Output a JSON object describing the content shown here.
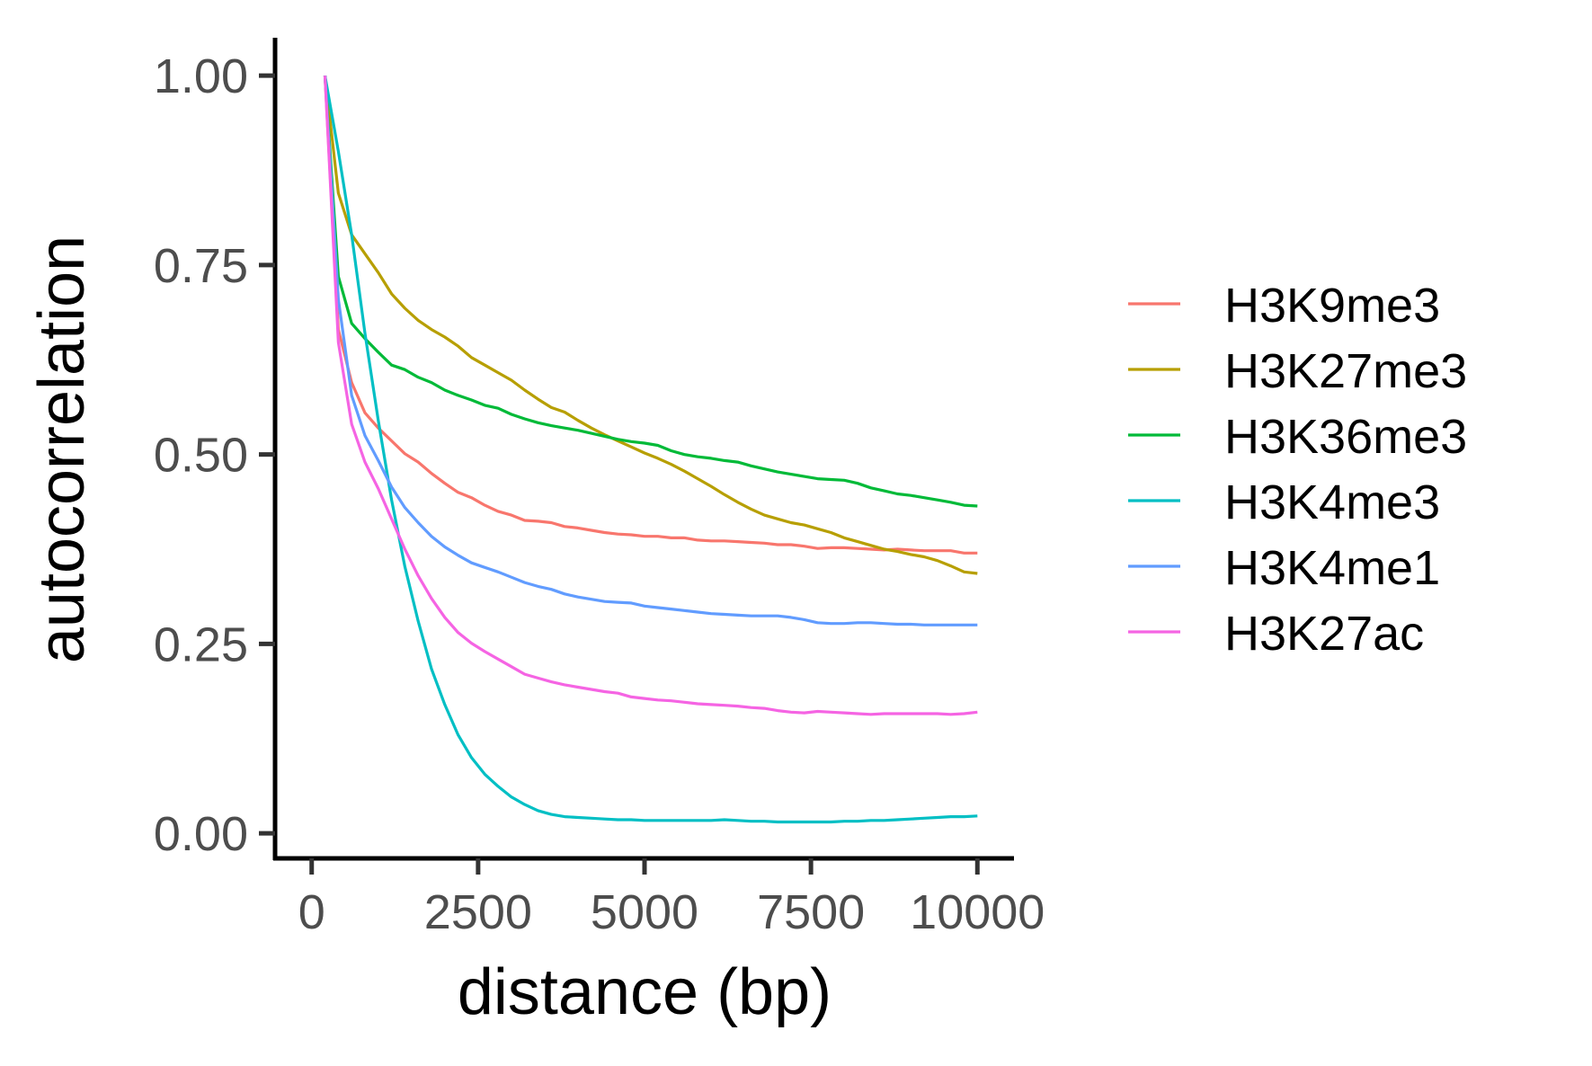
{
  "chart_data": {
    "type": "line",
    "title": "",
    "xlabel": "distance (bp)",
    "ylabel": "autocorrelation",
    "xlim": [
      -550,
      10550
    ],
    "ylim": [
      -0.033,
      1.05
    ],
    "xticks": [
      0,
      2500,
      5000,
      7500,
      10000
    ],
    "xtick_labels": [
      "0",
      "2500",
      "5000",
      "7500",
      "10000"
    ],
    "yticks": [
      0.0,
      0.25,
      0.5,
      0.75,
      1.0
    ],
    "ytick_labels": [
      "0.00",
      "0.25",
      "0.50",
      "0.75",
      "1.00"
    ],
    "grid": false,
    "legend_position": "right",
    "series": [
      {
        "name": "H3K9me3",
        "color": "#F8766D",
        "x": [
          200,
          400,
          600,
          800,
          1000,
          1200,
          1400,
          1600,
          1800,
          2000,
          2200,
          2400,
          2600,
          2800,
          3000,
          3200,
          3400,
          3600,
          3800,
          4000,
          4200,
          4400,
          4600,
          4800,
          5000,
          5200,
          5400,
          5600,
          5800,
          6000,
          6200,
          6400,
          6600,
          6800,
          7000,
          7200,
          7400,
          7600,
          7800,
          8000,
          8200,
          8400,
          8600,
          8800,
          9000,
          9200,
          9400,
          9600,
          9800,
          10000
        ],
        "values": [
          1.0,
          0.665,
          0.595,
          0.555,
          0.535,
          0.518,
          0.501,
          0.49,
          0.475,
          0.462,
          0.45,
          0.443,
          0.433,
          0.425,
          0.42,
          0.413,
          0.412,
          0.41,
          0.405,
          0.403,
          0.4,
          0.397,
          0.395,
          0.394,
          0.392,
          0.392,
          0.39,
          0.39,
          0.387,
          0.386,
          0.386,
          0.385,
          0.384,
          0.383,
          0.381,
          0.381,
          0.379,
          0.376,
          0.377,
          0.377,
          0.376,
          0.375,
          0.374,
          0.375,
          0.374,
          0.373,
          0.373,
          0.373,
          0.37,
          0.37
        ]
      },
      {
        "name": "H3K27me3",
        "color": "#B79F00",
        "x": [
          200,
          400,
          600,
          800,
          1000,
          1200,
          1400,
          1600,
          1800,
          2000,
          2200,
          2400,
          2600,
          2800,
          3000,
          3200,
          3400,
          3600,
          3800,
          4000,
          4200,
          4400,
          4600,
          4800,
          5000,
          5200,
          5400,
          5600,
          5800,
          6000,
          6200,
          6400,
          6600,
          6800,
          7000,
          7200,
          7400,
          7600,
          7800,
          8000,
          8200,
          8400,
          8600,
          8800,
          9000,
          9200,
          9400,
          9600,
          9800,
          10000
        ],
        "values": [
          1.0,
          0.845,
          0.79,
          0.765,
          0.74,
          0.712,
          0.693,
          0.677,
          0.665,
          0.655,
          0.643,
          0.628,
          0.618,
          0.608,
          0.598,
          0.585,
          0.573,
          0.562,
          0.556,
          0.545,
          0.535,
          0.526,
          0.518,
          0.51,
          0.502,
          0.495,
          0.487,
          0.478,
          0.468,
          0.458,
          0.447,
          0.437,
          0.428,
          0.42,
          0.415,
          0.41,
          0.407,
          0.402,
          0.397,
          0.39,
          0.385,
          0.38,
          0.375,
          0.372,
          0.368,
          0.365,
          0.36,
          0.353,
          0.345,
          0.343
        ]
      },
      {
        "name": "H3K36me3",
        "color": "#00BA38",
        "x": [
          200,
          400,
          600,
          800,
          1000,
          1200,
          1400,
          1600,
          1800,
          2000,
          2200,
          2400,
          2600,
          2800,
          3000,
          3200,
          3400,
          3600,
          3800,
          4000,
          4200,
          4400,
          4600,
          4800,
          5000,
          5200,
          5400,
          5600,
          5800,
          6000,
          6200,
          6400,
          6600,
          6800,
          7000,
          7200,
          7400,
          7600,
          7800,
          8000,
          8200,
          8400,
          8600,
          8800,
          9000,
          9200,
          9400,
          9600,
          9800,
          10000
        ],
        "values": [
          1.0,
          0.735,
          0.673,
          0.653,
          0.635,
          0.618,
          0.612,
          0.602,
          0.595,
          0.585,
          0.578,
          0.572,
          0.565,
          0.561,
          0.553,
          0.547,
          0.542,
          0.538,
          0.535,
          0.532,
          0.528,
          0.524,
          0.52,
          0.517,
          0.515,
          0.512,
          0.505,
          0.5,
          0.497,
          0.495,
          0.492,
          0.49,
          0.485,
          0.481,
          0.477,
          0.474,
          0.471,
          0.468,
          0.467,
          0.466,
          0.462,
          0.456,
          0.452,
          0.448,
          0.446,
          0.443,
          0.44,
          0.437,
          0.433,
          0.432
        ]
      },
      {
        "name": "H3K4me3",
        "color": "#00BFC4",
        "x": [
          200,
          400,
          600,
          800,
          1000,
          1200,
          1400,
          1600,
          1800,
          2000,
          2200,
          2400,
          2600,
          2800,
          3000,
          3200,
          3400,
          3600,
          3800,
          4000,
          4200,
          4400,
          4600,
          4800,
          5000,
          5200,
          5400,
          5600,
          5800,
          6000,
          6200,
          6400,
          6600,
          6800,
          7000,
          7200,
          7400,
          7600,
          7800,
          8000,
          8200,
          8400,
          8600,
          8800,
          9000,
          9200,
          9400,
          9600,
          9800,
          10000
        ],
        "values": [
          1.0,
          0.9,
          0.79,
          0.66,
          0.545,
          0.44,
          0.352,
          0.28,
          0.217,
          0.17,
          0.13,
          0.1,
          0.078,
          0.062,
          0.048,
          0.038,
          0.03,
          0.025,
          0.022,
          0.021,
          0.02,
          0.019,
          0.018,
          0.018,
          0.017,
          0.017,
          0.017,
          0.017,
          0.017,
          0.017,
          0.018,
          0.017,
          0.016,
          0.016,
          0.015,
          0.015,
          0.015,
          0.015,
          0.015,
          0.016,
          0.016,
          0.017,
          0.017,
          0.018,
          0.019,
          0.02,
          0.021,
          0.022,
          0.022,
          0.023
        ]
      },
      {
        "name": "H3K4me1",
        "color": "#619CFF",
        "x": [
          200,
          400,
          600,
          800,
          1000,
          1200,
          1400,
          1600,
          1800,
          2000,
          2200,
          2400,
          2600,
          2800,
          3000,
          3200,
          3400,
          3600,
          3800,
          4000,
          4200,
          4400,
          4600,
          4800,
          5000,
          5200,
          5400,
          5600,
          5800,
          6000,
          6200,
          6400,
          6600,
          6800,
          7000,
          7200,
          7400,
          7600,
          7800,
          8000,
          8200,
          8400,
          8600,
          8800,
          9000,
          9200,
          9400,
          9600,
          9800,
          10000
        ],
        "values": [
          1.0,
          0.705,
          0.578,
          0.525,
          0.492,
          0.457,
          0.43,
          0.41,
          0.392,
          0.378,
          0.367,
          0.357,
          0.351,
          0.345,
          0.338,
          0.331,
          0.326,
          0.322,
          0.316,
          0.312,
          0.309,
          0.306,
          0.305,
          0.304,
          0.3,
          0.298,
          0.296,
          0.294,
          0.292,
          0.29,
          0.289,
          0.288,
          0.287,
          0.287,
          0.287,
          0.285,
          0.282,
          0.278,
          0.277,
          0.277,
          0.278,
          0.278,
          0.277,
          0.276,
          0.276,
          0.275,
          0.275,
          0.275,
          0.275,
          0.275
        ]
      },
      {
        "name": "H3K27ac",
        "color": "#F564E3",
        "x": [
          200,
          400,
          600,
          800,
          1000,
          1200,
          1400,
          1600,
          1800,
          2000,
          2200,
          2400,
          2600,
          2800,
          3000,
          3200,
          3400,
          3600,
          3800,
          4000,
          4200,
          4400,
          4600,
          4800,
          5000,
          5200,
          5400,
          5600,
          5800,
          6000,
          6200,
          6400,
          6600,
          6800,
          7000,
          7200,
          7400,
          7600,
          7800,
          8000,
          8200,
          8400,
          8600,
          8800,
          9000,
          9200,
          9400,
          9600,
          9800,
          10000
        ],
        "values": [
          1.0,
          0.648,
          0.54,
          0.49,
          0.455,
          0.415,
          0.375,
          0.34,
          0.31,
          0.285,
          0.265,
          0.251,
          0.24,
          0.23,
          0.22,
          0.21,
          0.205,
          0.2,
          0.196,
          0.193,
          0.19,
          0.187,
          0.185,
          0.18,
          0.178,
          0.176,
          0.175,
          0.173,
          0.171,
          0.17,
          0.169,
          0.168,
          0.166,
          0.165,
          0.162,
          0.16,
          0.159,
          0.161,
          0.16,
          0.159,
          0.158,
          0.157,
          0.158,
          0.158,
          0.158,
          0.158,
          0.158,
          0.157,
          0.158,
          0.16
        ]
      }
    ]
  }
}
